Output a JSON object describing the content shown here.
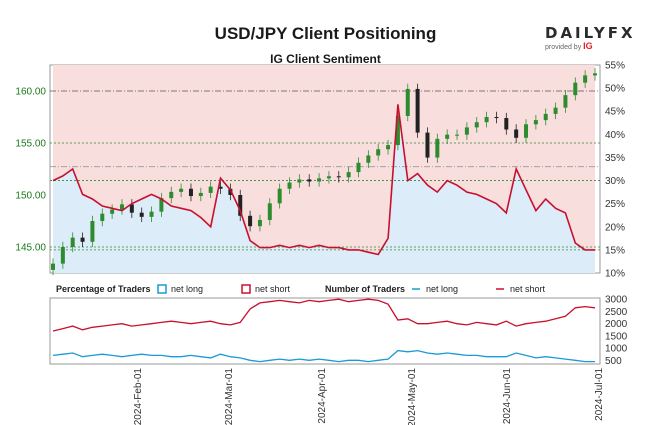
{
  "header": {
    "title": "USD/JPY Client Positioning",
    "subtitle": "IG Client Sentiment",
    "logo_text": "DAILYFX",
    "logo_provided_by": "provided by",
    "logo_ig": "IG"
  },
  "colors": {
    "net_long": "#1b9ad6",
    "net_short": "#c8102e",
    "long_fill": "#dcecf8",
    "short_fill": "#f9dede",
    "up_candle": "#2e8b2e",
    "down_candle": "#222222"
  },
  "legend": {
    "pct_label": "Percentage of Traders",
    "pct_long": "net long",
    "pct_short": "net short",
    "num_label": "Number of Traders",
    "num_long": "net long",
    "num_short": "net short"
  },
  "chart_data": [
    {
      "type": "line",
      "name": "price_and_sentiment",
      "price_axis": {
        "ticks": [
          "145.00",
          "150.00",
          "155.00",
          "160.00"
        ],
        "ylim": [
          142.5,
          162.5
        ],
        "side": "left"
      },
      "pct_axis": {
        "ticks": [
          "10%",
          "15%",
          "20%",
          "25%",
          "30%",
          "35%",
          "40%",
          "45%",
          "50%",
          "55%"
        ],
        "ylim": [
          10,
          55
        ],
        "side": "right"
      },
      "price_close": [
        143.4,
        145.0,
        145.9,
        145.5,
        147.5,
        148.2,
        148.6,
        149.1,
        148.3,
        147.9,
        148.4,
        149.7,
        150.3,
        150.6,
        149.9,
        150.2,
        150.8,
        150.6,
        150.0,
        148.0,
        147.0,
        147.6,
        149.2,
        150.6,
        151.2,
        151.5,
        151.3,
        151.6,
        151.8,
        151.7,
        152.2,
        153.1,
        153.8,
        154.4,
        154.8,
        157.6,
        160.2,
        156.0,
        153.6,
        155.4,
        155.8,
        155.8,
        156.5,
        157.0,
        157.5,
        157.4,
        156.3,
        155.5,
        156.8,
        157.2,
        157.8,
        158.4,
        159.6,
        160.8,
        161.5,
        161.7
      ],
      "pct_net_long": [
        30.0,
        31.0,
        32.5,
        27.0,
        26.0,
        24.5,
        24.0,
        23.5,
        25.0,
        26.0,
        27.0,
        26.0,
        24.5,
        24.0,
        23.5,
        22.0,
        20.0,
        30.5,
        28.0,
        23.5,
        17.0,
        15.5,
        15.5,
        16.0,
        15.5,
        16.0,
        15.5,
        16.0,
        15.5,
        15.5,
        15.0,
        15.0,
        14.5,
        14.0,
        17.5,
        46.5,
        30.0,
        31.5,
        29.0,
        27.5,
        30.0,
        29.0,
        27.5,
        27.0,
        26.0,
        25.0,
        23.0,
        32.5,
        28.0,
        23.5,
        26.0,
        24.0,
        23.0,
        16.5,
        15.0,
        15.0
      ],
      "bands": {
        "long": "below",
        "short": "above"
      },
      "reference_lines": [
        160,
        30,
        33,
        15
      ]
    },
    {
      "type": "line",
      "name": "trader_counts",
      "count_axis": {
        "ticks": [
          "500",
          "1000",
          "1500",
          "2000",
          "2500",
          "3000"
        ],
        "ylim": [
          350,
          3050
        ],
        "side": "right"
      },
      "net_short": [
        1700,
        1800,
        1900,
        1750,
        1850,
        1900,
        1950,
        2000,
        1900,
        1950,
        2000,
        2050,
        2100,
        2050,
        2000,
        2050,
        2100,
        2000,
        1950,
        2050,
        2600,
        2850,
        2900,
        2950,
        2900,
        2850,
        2950,
        2900,
        2950,
        3000,
        2900,
        2950,
        3000,
        2950,
        2800,
        2150,
        2200,
        2000,
        2000,
        2050,
        2100,
        2000,
        1950,
        2050,
        2000,
        1950,
        2100,
        1900,
        2000,
        2050,
        2100,
        2200,
        2300,
        2650,
        2700,
        2650
      ],
      "net_long": [
        700,
        750,
        800,
        650,
        700,
        750,
        700,
        650,
        700,
        750,
        700,
        700,
        650,
        650,
        700,
        650,
        600,
        750,
        650,
        600,
        500,
        450,
        500,
        550,
        500,
        550,
        500,
        550,
        500,
        450,
        500,
        500,
        450,
        500,
        550,
        900,
        850,
        900,
        800,
        750,
        800,
        750,
        700,
        700,
        650,
        650,
        650,
        800,
        700,
        600,
        650,
        600,
        550,
        500,
        450,
        450
      ]
    }
  ],
  "x_axis": {
    "ticks": [
      "2024-Feb-01",
      "2024-Mar-01",
      "2024-Apr-01",
      "2024-May-01",
      "2024-Jun-01",
      "2024-Jul-01"
    ]
  }
}
